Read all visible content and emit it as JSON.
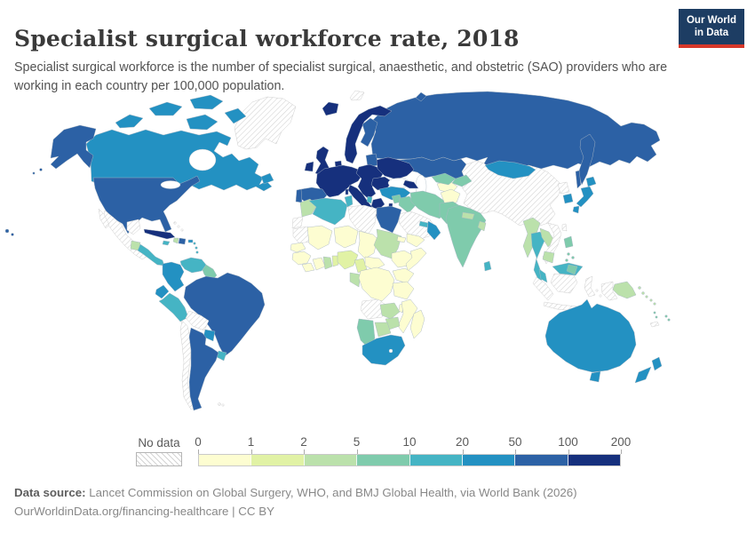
{
  "header": {
    "title": "Specialist surgical workforce rate, 2018",
    "subtitle": "Specialist surgical workforce is the number of specialist surgical, anaesthetic, and obstetric (SAO) providers who are working in each country per 100,000 population."
  },
  "logo": {
    "line1": "Our World",
    "line2": "in Data",
    "bg_color": "#1d3d63",
    "accent_color": "#d7382a"
  },
  "legend": {
    "no_data_label": "No data",
    "tick_labels": [
      "0",
      "1",
      "2",
      "5",
      "10",
      "20",
      "50",
      "100",
      "200"
    ],
    "colors": [
      "#fdfdd1",
      "#e1f2a5",
      "#bbe1ab",
      "#7fcbac",
      "#45b4c4",
      "#2391c2",
      "#2c61a5",
      "#16307d"
    ]
  },
  "footer": {
    "source_label": "Data source:",
    "source_text": " Lancet Commission on Global Surgery, WHO, and BMJ Global Health, via World Bank (2026)",
    "link": "OurWorldinData.org/financing-healthcare",
    "separator": " | ",
    "license": "CC BY"
  },
  "chart_data": {
    "type": "choropleth",
    "title": "Specialist surgical workforce rate",
    "year": 2018,
    "unit": "SAO providers per 100,000 population",
    "bin_edges": [
      0,
      1,
      2,
      5,
      10,
      20,
      50,
      100,
      200
    ],
    "bin_colors": {
      "0-1": "#fdfdd1",
      "1-2": "#e1f2a5",
      "2-5": "#bbe1ab",
      "5-10": "#7fcbac",
      "10-20": "#45b4c4",
      "20-50": "#2391c2",
      "50-100": "#2c61a5",
      "100-200": "#16307d",
      "no-data": "hatched"
    },
    "regions": {
      "greenland": "no-data",
      "svalbard": "no-data",
      "iceland": "100-200",
      "canada": "20-50",
      "usa": "50-100",
      "mexico": "no-data",
      "guatemala": "2-5",
      "central-america": "10-20",
      "cuba": "100-200",
      "haiti": "2-5",
      "dominican-republic": "50-100",
      "jamaica": "10-20",
      "puerto-rico": "20-50",
      "bahamas": "no-data",
      "lesser-antilles": "10-20",
      "trinidad": "10-20",
      "colombia": "20-50",
      "venezuela": "10-20",
      "guyanas": "5-10",
      "ecuador": "20-50",
      "peru": "10-20",
      "brazil": "50-100",
      "bolivia": "no-data",
      "paraguay": "20-50",
      "uruguay": "10-20",
      "chile": "no-data",
      "argentina": "50-100",
      "falklands": "no-data",
      "uk": "100-200",
      "ireland": "100-200",
      "scandinavia": "100-200",
      "finland": "50-100",
      "denmark": "100-200",
      "baltics": "50-100",
      "western-europe": "100-200",
      "spain": "50-100",
      "portugal": "50-100",
      "italy": "100-200",
      "eastern-europe": "100-200",
      "greece": "100-200",
      "albania": "10-20",
      "romania-bulgaria": "100-200",
      "ukraine": "100-200",
      "russia": "50-100",
      "kazakhstan": "50-100",
      "turkey": "20-50",
      "caucasus": "100-200",
      "syria": "5-10",
      "iraq": "5-10",
      "israel-jordan": "100-200",
      "saudi-arabia": "no-data",
      "yemen": "0-1",
      "oman": "20-50",
      "uae": "10-20",
      "iran": "5-10",
      "turkmenistan": "0-1",
      "uzbekistan": "5-10",
      "kyrgyzstan-tajikistan": "5-10",
      "afghanistan": "0-1",
      "pakistan": "5-10",
      "india": "5-10",
      "nepal": "2-5",
      "bangladesh": "2-5",
      "sri-lanka": "10-20",
      "china": "no-data",
      "mongolia": "20-50",
      "north-korea": "no-data",
      "south-korea": "20-50",
      "japan": "20-50",
      "taiwan": "no-data",
      "myanmar": "2-5",
      "thailand": "10-20",
      "laos": "2-5",
      "vietnam": "no-data",
      "cambodia": "2-5",
      "malaysia": "10-20",
      "indonesia": "no-data",
      "philippines": "5-10",
      "papua-new-guinea": "2-5",
      "solomon-islands": "2-5",
      "vanuatu": "5-10",
      "fiji": "5-10",
      "new-caledonia": "no-data",
      "australia": "20-50",
      "new-zealand": "20-50",
      "morocco": "2-5",
      "western-sahara": "no-data",
      "mauritania": "no-data",
      "mali": "0-1",
      "senegal": "0-1",
      "guinea-group": "0-1",
      "sierra-leone-liberia": "0-1",
      "ivory-coast": "0-1",
      "ghana": "2-5",
      "togo-benin": "1-2",
      "nigeria": "1-2",
      "algeria": "10-20",
      "tunisia": "10-20",
      "libya": "no-data",
      "egypt": "50-100",
      "niger": "0-1",
      "chad": "0-1",
      "sudan": "2-5",
      "eritrea": "0-1",
      "ethiopia": "0-1",
      "somalia": "0-1",
      "cameroon": "1-2",
      "central-african-republic": "0-1",
      "gabon-congo": "2-5",
      "drc": "0-1",
      "uganda-kenya": "0-1",
      "tanzania": "0-1",
      "angola": "no-data",
      "zambia": "2-5",
      "malawi": "0-1",
      "mozambique": "0-1",
      "zimbabwe": "2-5",
      "botswana": "2-5",
      "namibia": "5-10",
      "south-africa": "20-50",
      "madagascar": "0-1"
    }
  }
}
